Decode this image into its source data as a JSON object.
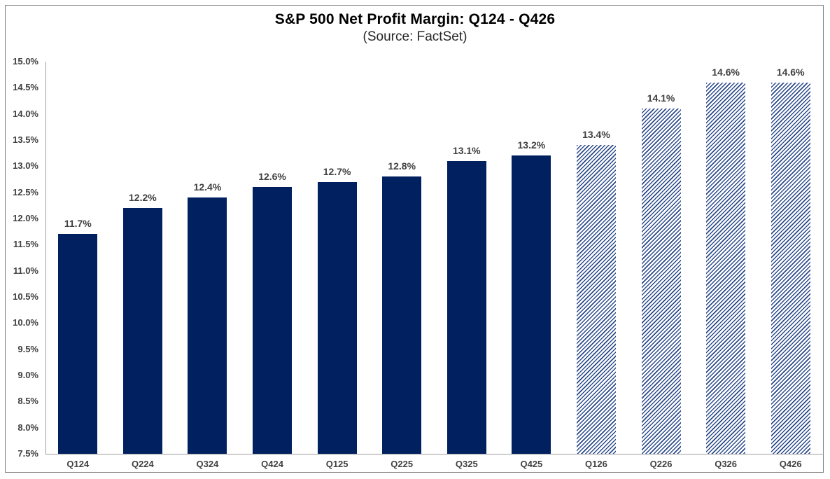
{
  "chart_data": {
    "type": "bar",
    "title": "S&P 500 Net Profit Margin: Q124 - Q426",
    "subtitle": "(Source: FactSet)",
    "categories": [
      "Q124",
      "Q224",
      "Q324",
      "Q424",
      "Q125",
      "Q225",
      "Q325",
      "Q425",
      "Q126",
      "Q226",
      "Q326",
      "Q426"
    ],
    "values": [
      11.7,
      12.2,
      12.4,
      12.6,
      12.7,
      12.8,
      13.1,
      13.2,
      13.4,
      14.1,
      14.6,
      14.6
    ],
    "labels": [
      "11.7%",
      "12.2%",
      "12.4%",
      "12.6%",
      "12.7%",
      "12.8%",
      "13.1%",
      "13.2%",
      "13.4%",
      "14.1%",
      "14.6%",
      "14.6%"
    ],
    "hatched_from_index": 8,
    "y_ticks": [
      "15.0%",
      "14.5%",
      "14.0%",
      "13.5%",
      "13.0%",
      "12.5%",
      "12.0%",
      "11.5%",
      "11.0%",
      "10.5%",
      "10.0%",
      "9.5%",
      "9.0%",
      "8.5%",
      "8.0%",
      "7.5%"
    ],
    "ylim": [
      7.5,
      15.0
    ],
    "grid": false,
    "legend": "none",
    "colors": {
      "bar_solid": "#002060",
      "hatch_stripe": "#2b4a8b",
      "axis_line": "#9d9d9d",
      "label_text": "#404040",
      "title_text": "#000000",
      "frame_border": "#808080"
    }
  }
}
